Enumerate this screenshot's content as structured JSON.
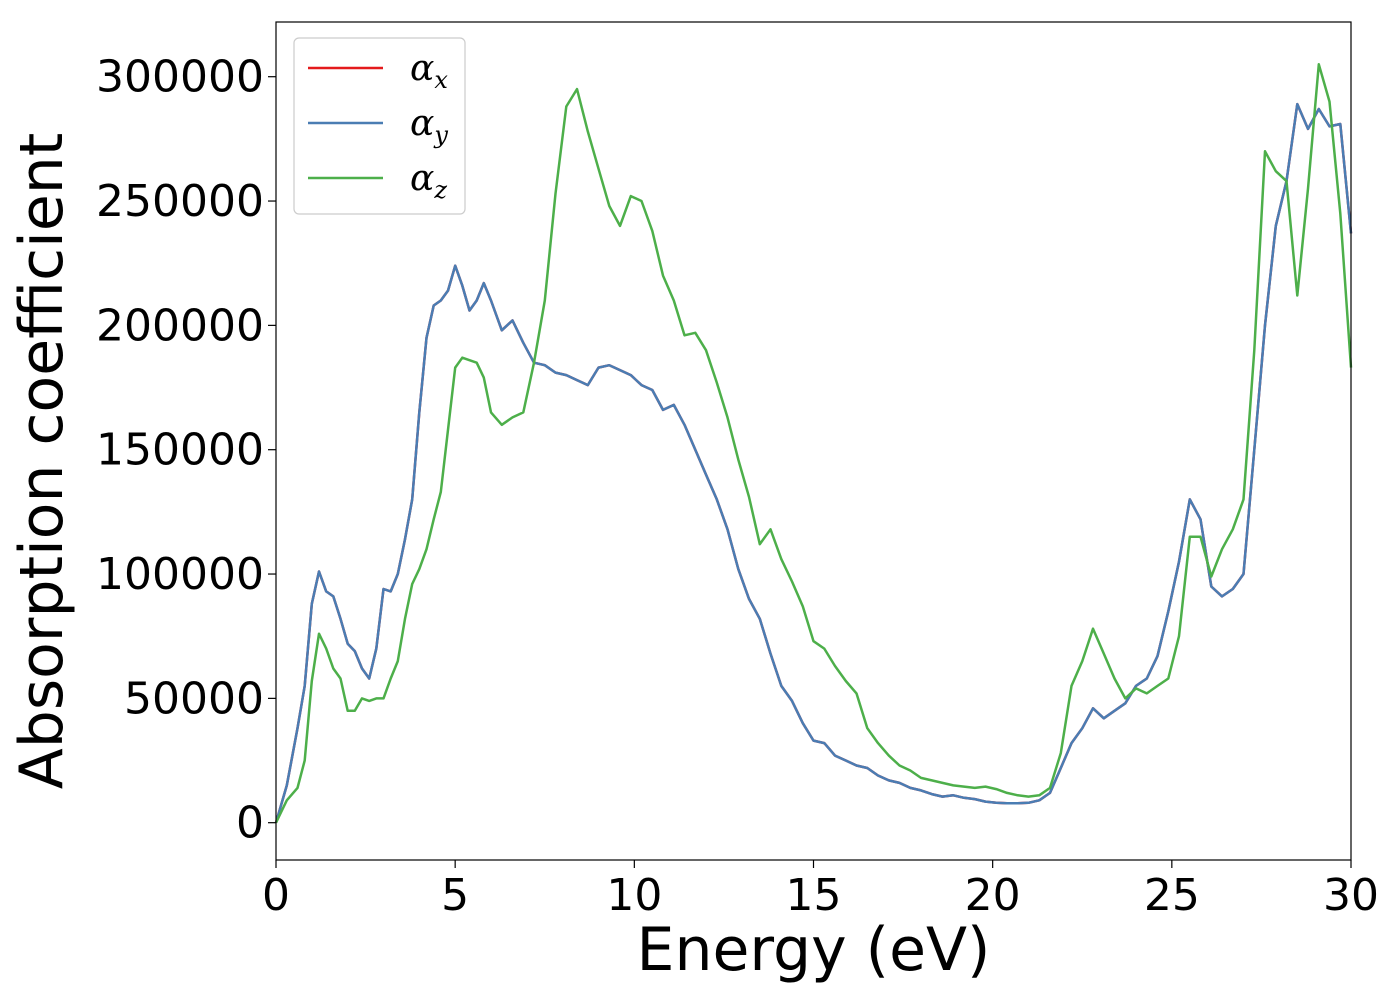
{
  "chart_data": {
    "type": "line",
    "xlabel": "Energy (eV)",
    "ylabel": "Absorption coefficient",
    "xlim": [
      0,
      30
    ],
    "ylim": [
      -15000,
      322000
    ],
    "xticks": [
      0,
      5,
      10,
      15,
      20,
      25,
      30
    ],
    "xtick_labels": [
      "0",
      "5",
      "10",
      "15",
      "20",
      "25",
      "30"
    ],
    "yticks": [
      0,
      50000,
      100000,
      150000,
      200000,
      250000,
      300000
    ],
    "ytick_labels": [
      "0",
      "50000",
      "100000",
      "150000",
      "200000",
      "250000",
      "300000"
    ],
    "grid": false,
    "legend_position": "top-left",
    "series": [
      {
        "name": "αx",
        "legend_base": "α",
        "legend_sub": "x",
        "color": "#e41a1c",
        "x": [
          0,
          0.3,
          0.6,
          0.8,
          1.0,
          1.2,
          1.4,
          1.6,
          1.8,
          2.0,
          2.2,
          2.4,
          2.6,
          2.8,
          3.0,
          3.2,
          3.4,
          3.6,
          3.8,
          4.0,
          4.2,
          4.4,
          4.6,
          4.8,
          5.0,
          5.2,
          5.4,
          5.6,
          5.8,
          6.0,
          6.3,
          6.6,
          6.9,
          7.2,
          7.5,
          7.8,
          8.1,
          8.4,
          8.7,
          9.0,
          9.3,
          9.6,
          9.9,
          10.2,
          10.5,
          10.8,
          11.1,
          11.4,
          11.7,
          12.0,
          12.3,
          12.6,
          12.9,
          13.2,
          13.5,
          13.8,
          14.1,
          14.4,
          14.7,
          15.0,
          15.3,
          15.6,
          15.9,
          16.2,
          16.5,
          16.8,
          17.1,
          17.4,
          17.7,
          18.0,
          18.3,
          18.6,
          18.9,
          19.2,
          19.5,
          19.8,
          20.1,
          20.4,
          20.7,
          21.0,
          21.3,
          21.6,
          21.9,
          22.2,
          22.5,
          22.8,
          23.1,
          23.4,
          23.7,
          24.0,
          24.3,
          24.6,
          24.9,
          25.2,
          25.5,
          25.8,
          26.1,
          26.4,
          26.7,
          27.0,
          27.3,
          27.6,
          27.9,
          28.2,
          28.5,
          28.8,
          29.1,
          29.4,
          29.7,
          30.0
        ],
        "y": [
          0,
          15000,
          38000,
          55000,
          88000,
          101000,
          93000,
          91000,
          82000,
          72000,
          69000,
          62000,
          58000,
          70000,
          94000,
          93000,
          100000,
          114000,
          130000,
          165000,
          195000,
          208000,
          210000,
          214000,
          224000,
          216000,
          206000,
          210000,
          217000,
          210000,
          198000,
          202000,
          193000,
          185000,
          184000,
          181000,
          180000,
          178000,
          176000,
          183000,
          184000,
          182000,
          180000,
          176000,
          174000,
          166000,
          168000,
          160000,
          150000,
          140000,
          130000,
          118000,
          102000,
          90000,
          82000,
          68000,
          55000,
          49000,
          40000,
          33000,
          32000,
          27000,
          25000,
          23000,
          22000,
          19000,
          17000,
          16000,
          14000,
          13000,
          11500,
          10500,
          11000,
          10000,
          9500,
          8500,
          8000,
          7800,
          7800,
          8000,
          9000,
          12000,
          22000,
          32000,
          38000,
          46000,
          42000,
          45000,
          48000,
          55000,
          58000,
          67000,
          85000,
          105000,
          130000,
          122000,
          95000,
          91000,
          94000,
          100000,
          150000,
          200000,
          240000,
          258000,
          289000,
          279000,
          287000,
          280000,
          281000,
          237000
        ]
      },
      {
        "name": "αy",
        "legend_base": "α",
        "legend_sub": "y",
        "color": "#4a7db3",
        "x": [
          0,
          0.3,
          0.6,
          0.8,
          1.0,
          1.2,
          1.4,
          1.6,
          1.8,
          2.0,
          2.2,
          2.4,
          2.6,
          2.8,
          3.0,
          3.2,
          3.4,
          3.6,
          3.8,
          4.0,
          4.2,
          4.4,
          4.6,
          4.8,
          5.0,
          5.2,
          5.4,
          5.6,
          5.8,
          6.0,
          6.3,
          6.6,
          6.9,
          7.2,
          7.5,
          7.8,
          8.1,
          8.4,
          8.7,
          9.0,
          9.3,
          9.6,
          9.9,
          10.2,
          10.5,
          10.8,
          11.1,
          11.4,
          11.7,
          12.0,
          12.3,
          12.6,
          12.9,
          13.2,
          13.5,
          13.8,
          14.1,
          14.4,
          14.7,
          15.0,
          15.3,
          15.6,
          15.9,
          16.2,
          16.5,
          16.8,
          17.1,
          17.4,
          17.7,
          18.0,
          18.3,
          18.6,
          18.9,
          19.2,
          19.5,
          19.8,
          20.1,
          20.4,
          20.7,
          21.0,
          21.3,
          21.6,
          21.9,
          22.2,
          22.5,
          22.8,
          23.1,
          23.4,
          23.7,
          24.0,
          24.3,
          24.6,
          24.9,
          25.2,
          25.5,
          25.8,
          26.1,
          26.4,
          26.7,
          27.0,
          27.3,
          27.6,
          27.9,
          28.2,
          28.5,
          28.8,
          29.1,
          29.4,
          29.7,
          30.0
        ],
        "y": [
          0,
          15000,
          38000,
          55000,
          88000,
          101000,
          93000,
          91000,
          82000,
          72000,
          69000,
          62000,
          58000,
          70000,
          94000,
          93000,
          100000,
          114000,
          130000,
          165000,
          195000,
          208000,
          210000,
          214000,
          224000,
          216000,
          206000,
          210000,
          217000,
          210000,
          198000,
          202000,
          193000,
          185000,
          184000,
          181000,
          180000,
          178000,
          176000,
          183000,
          184000,
          182000,
          180000,
          176000,
          174000,
          166000,
          168000,
          160000,
          150000,
          140000,
          130000,
          118000,
          102000,
          90000,
          82000,
          68000,
          55000,
          49000,
          40000,
          33000,
          32000,
          27000,
          25000,
          23000,
          22000,
          19000,
          17000,
          16000,
          14000,
          13000,
          11500,
          10500,
          11000,
          10000,
          9500,
          8500,
          8000,
          7800,
          7800,
          8000,
          9000,
          12000,
          22000,
          32000,
          38000,
          46000,
          42000,
          45000,
          48000,
          55000,
          58000,
          67000,
          85000,
          105000,
          130000,
          122000,
          95000,
          91000,
          94000,
          100000,
          150000,
          200000,
          240000,
          258000,
          289000,
          279000,
          287000,
          280000,
          281000,
          237000
        ]
      },
      {
        "name": "αz",
        "legend_base": "α",
        "legend_sub": "z",
        "color": "#4daf4a",
        "x": [
          0,
          0.3,
          0.6,
          0.8,
          1.0,
          1.2,
          1.4,
          1.6,
          1.8,
          2.0,
          2.2,
          2.4,
          2.6,
          2.8,
          3.0,
          3.2,
          3.4,
          3.6,
          3.8,
          4.0,
          4.2,
          4.4,
          4.6,
          4.8,
          5.0,
          5.2,
          5.4,
          5.6,
          5.8,
          6.0,
          6.3,
          6.6,
          6.9,
          7.2,
          7.5,
          7.8,
          8.1,
          8.4,
          8.7,
          9.0,
          9.3,
          9.6,
          9.9,
          10.2,
          10.5,
          10.8,
          11.1,
          11.4,
          11.7,
          12.0,
          12.3,
          12.6,
          12.9,
          13.2,
          13.5,
          13.8,
          14.1,
          14.4,
          14.7,
          15.0,
          15.3,
          15.6,
          15.9,
          16.2,
          16.5,
          16.8,
          17.1,
          17.4,
          17.7,
          18.0,
          18.3,
          18.6,
          18.9,
          19.2,
          19.5,
          19.8,
          20.1,
          20.4,
          20.7,
          21.0,
          21.3,
          21.6,
          21.9,
          22.2,
          22.5,
          22.8,
          23.1,
          23.4,
          23.7,
          24.0,
          24.3,
          24.6,
          24.9,
          25.2,
          25.5,
          25.8,
          26.1,
          26.4,
          26.7,
          27.0,
          27.3,
          27.6,
          27.9,
          28.2,
          28.5,
          28.8,
          29.1,
          29.4,
          29.7,
          30.0
        ],
        "y": [
          0,
          9000,
          14000,
          25000,
          57000,
          76000,
          70000,
          62000,
          58000,
          45000,
          45000,
          50000,
          49000,
          50000,
          50000,
          58000,
          65000,
          82000,
          96000,
          102000,
          110000,
          122000,
          133000,
          158000,
          183000,
          187000,
          186000,
          185000,
          179000,
          165000,
          160000,
          163000,
          165000,
          185000,
          210000,
          253000,
          288000,
          295000,
          278000,
          263000,
          248000,
          240000,
          252000,
          250000,
          238000,
          220000,
          210000,
          196000,
          197000,
          190000,
          177000,
          163000,
          146000,
          131000,
          112000,
          118000,
          106000,
          97000,
          87000,
          73000,
          70000,
          63000,
          57000,
          52000,
          38000,
          32000,
          27000,
          23000,
          21000,
          18000,
          17000,
          16000,
          15000,
          14500,
          14000,
          14500,
          13500,
          12000,
          11000,
          10500,
          11000,
          14000,
          28000,
          55000,
          65000,
          78000,
          68000,
          58000,
          50000,
          54000,
          52000,
          55000,
          58000,
          75000,
          115000,
          115000,
          99000,
          110000,
          118000,
          130000,
          190000,
          270000,
          262000,
          258000,
          212000,
          255000,
          305000,
          290000,
          245000,
          183000
        ]
      }
    ]
  }
}
